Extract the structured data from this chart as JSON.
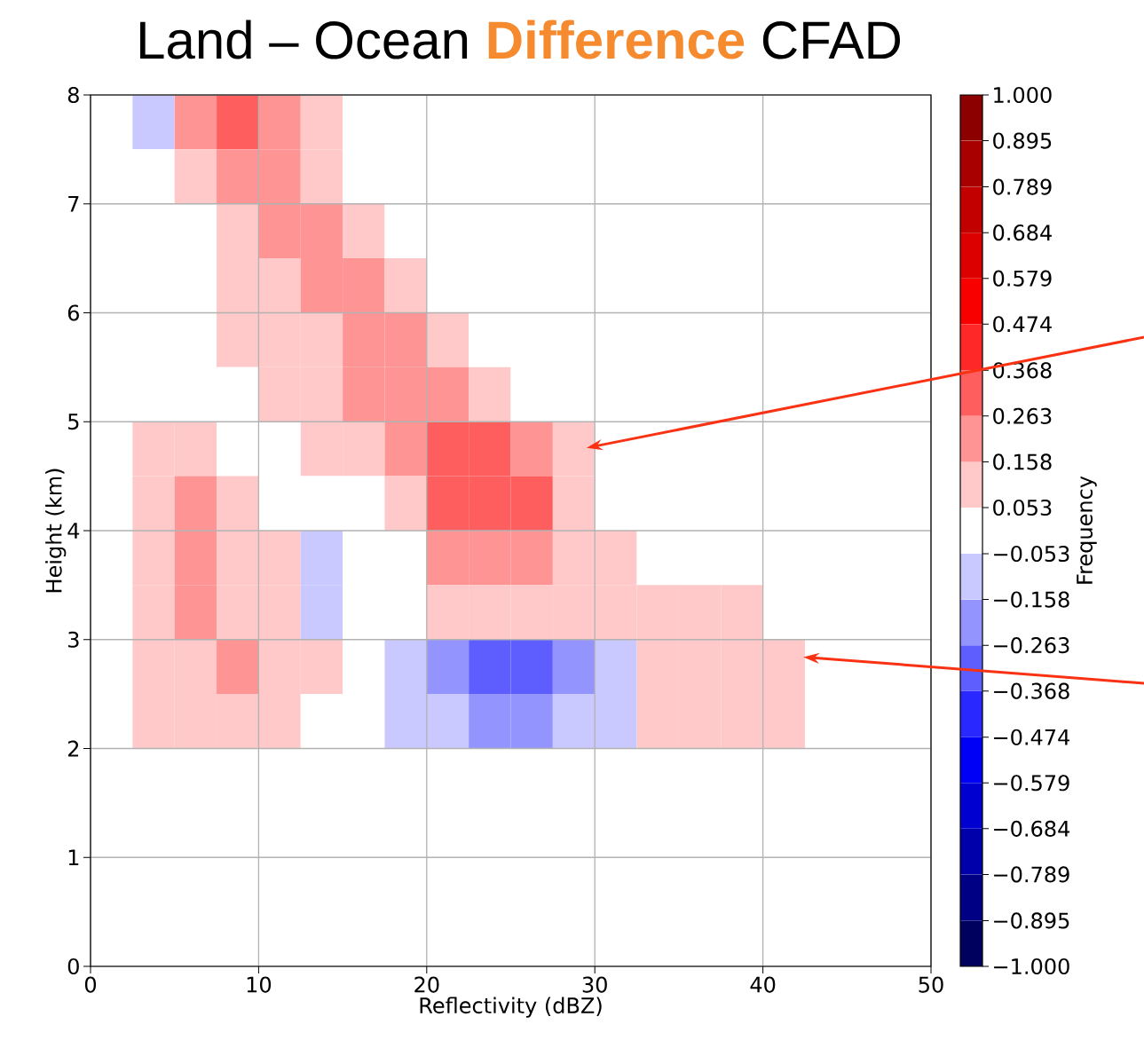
{
  "chart_data": {
    "type": "heatmap",
    "title": "Land – Ocean **Difference** CFAD",
    "xlabel": "Reflectivity (dBZ)",
    "ylabel": "Height (km)",
    "clabel": "Frequency",
    "x": [
      1.25,
      3.75,
      6.25,
      8.75,
      11.25,
      13.75,
      16.25,
      18.75,
      21.25,
      23.75,
      26.25,
      28.75,
      31.25,
      33.75,
      36.25,
      38.75,
      41.25,
      43.75,
      46.25,
      48.75
    ],
    "cells": [
      [
        0,
        -0.1,
        0.2,
        0.3,
        0.2,
        0.1,
        0,
        0,
        0,
        0,
        0,
        0,
        0,
        0,
        0,
        0,
        0,
        0,
        0,
        0
      ],
      [
        0,
        0,
        0.1,
        0.2,
        0.2,
        0.1,
        0,
        0,
        0,
        0,
        0,
        0,
        0,
        0,
        0,
        0,
        0,
        0,
        0,
        0
      ],
      [
        0,
        0,
        0,
        0.1,
        0.2,
        0.2,
        0.1,
        0,
        0,
        0,
        0,
        0,
        0,
        0,
        0,
        0,
        0,
        0,
        0,
        0
      ],
      [
        0,
        0,
        0,
        0.1,
        0.1,
        0.2,
        0.2,
        0.1,
        0,
        0,
        0,
        0,
        0,
        0,
        0,
        0,
        0,
        0,
        0,
        0
      ],
      [
        0,
        0,
        0,
        0.1,
        0.1,
        0.1,
        0.2,
        0.2,
        0.1,
        0,
        0,
        0,
        0,
        0,
        0,
        0,
        0,
        0,
        0,
        0
      ],
      [
        0,
        0,
        0,
        0,
        0.1,
        0.1,
        0.2,
        0.2,
        0.2,
        0.1,
        0,
        0,
        0,
        0,
        0,
        0,
        0,
        0,
        0,
        0
      ],
      [
        0,
        0.1,
        0.1,
        0,
        0,
        0.1,
        0.1,
        0.2,
        0.3,
        0.3,
        0.2,
        0.1,
        0,
        0,
        0,
        0,
        0,
        0,
        0,
        0
      ],
      [
        0,
        0.1,
        0.2,
        0.1,
        0,
        0,
        0,
        0.1,
        0.3,
        0.3,
        0.3,
        0.1,
        0,
        0,
        0,
        0,
        0,
        0,
        0,
        0
      ],
      [
        0,
        0.1,
        0.2,
        0.1,
        0.1,
        -0.1,
        0,
        0,
        0.2,
        0.2,
        0.2,
        0.1,
        0.1,
        0,
        0,
        0,
        0,
        0,
        0,
        0
      ],
      [
        0,
        0.1,
        0.2,
        0.1,
        0.1,
        -0.1,
        0,
        0,
        0.1,
        0.1,
        0.1,
        0.1,
        0.1,
        0.1,
        0.1,
        0.1,
        0,
        0,
        0,
        0
      ],
      [
        0,
        0.1,
        0.1,
        0.2,
        0.1,
        0.1,
        0,
        -0.1,
        -0.2,
        -0.3,
        -0.3,
        -0.2,
        -0.1,
        0.1,
        0.1,
        0.1,
        0.1,
        0,
        0,
        0
      ],
      [
        0,
        0.1,
        0.1,
        0.1,
        0.1,
        0,
        0,
        -0.1,
        -0.1,
        -0.2,
        -0.2,
        -0.1,
        -0.1,
        0.1,
        0.1,
        0.1,
        0.1,
        0,
        0,
        0
      ],
      [
        0,
        0,
        0,
        0,
        0,
        0,
        0,
        0,
        0,
        0,
        0,
        0,
        0,
        0,
        0,
        0,
        0,
        0,
        0,
        0
      ],
      [
        0,
        0,
        0,
        0,
        0,
        0,
        0,
        0,
        0,
        0,
        0,
        0,
        0,
        0,
        0,
        0,
        0,
        0,
        0,
        0
      ],
      [
        0,
        0,
        0,
        0,
        0,
        0,
        0,
        0,
        0,
        0,
        0,
        0,
        0,
        0,
        0,
        0,
        0,
        0,
        0,
        0
      ],
      [
        0,
        0,
        0,
        0,
        0,
        0,
        0,
        0,
        0,
        0,
        0,
        0,
        0,
        0,
        0,
        0,
        0,
        0,
        0,
        0
      ]
    ],
    "xlim": [
      0,
      50
    ],
    "ylim": [
      0,
      8
    ],
    "xticks": [
      0,
      10,
      20,
      30,
      40,
      50
    ],
    "yticks": [
      0,
      1,
      2,
      3,
      4,
      5,
      6,
      7,
      8
    ],
    "grid": true,
    "clim": [
      -1,
      1
    ],
    "cticks": [
      {
        "value": -1,
        "label": "−1.000"
      },
      {
        "value": -0.895,
        "label": "−0.895"
      },
      {
        "value": -0.789,
        "label": "−0.789"
      },
      {
        "value": -0.684,
        "label": "−0.684"
      },
      {
        "value": -0.579,
        "label": "−0.579"
      },
      {
        "value": -0.474,
        "label": "−0.474"
      },
      {
        "value": -0.368,
        "label": "−0.368"
      },
      {
        "value": -0.263,
        "label": "−0.263"
      },
      {
        "value": -0.158,
        "label": "−0.158"
      },
      {
        "value": -0.053,
        "label": "−0.053"
      },
      {
        "value": 0.053,
        "label": "0.053"
      },
      {
        "value": 0.158,
        "label": "0.158"
      },
      {
        "value": 0.263,
        "label": "0.263"
      },
      {
        "value": 0.368,
        "label": "0.368"
      },
      {
        "value": 0.474,
        "label": "0.474"
      },
      {
        "value": 0.579,
        "label": "0.579"
      },
      {
        "value": 0.684,
        "label": "0.684"
      },
      {
        "value": 0.789,
        "label": "0.789"
      },
      {
        "value": 0.895,
        "label": "0.895"
      },
      {
        "value": 1,
        "label": "1.000"
      }
    ]
  }
}
